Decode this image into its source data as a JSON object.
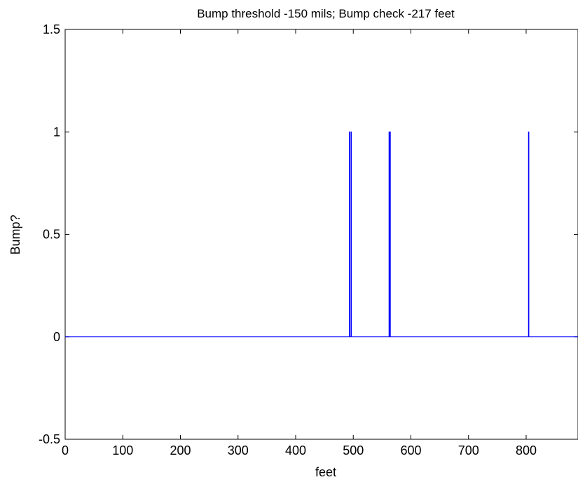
{
  "chart_data": {
    "type": "line",
    "title": "Bump threshold -150 mils; Bump check -217 feet",
    "xlabel": "feet",
    "ylabel": "Bump?",
    "xlim": [
      0,
      890
    ],
    "ylim": [
      -0.5,
      1.5
    ],
    "x_ticks": [
      0,
      100,
      200,
      300,
      400,
      500,
      600,
      700,
      800
    ],
    "x_tick_labels": [
      "0",
      "100",
      "200",
      "300",
      "400",
      "500",
      "600",
      "700",
      "800"
    ],
    "y_ticks": [
      -0.5,
      0,
      0.5,
      1,
      1.5
    ],
    "y_tick_labels": [
      "-0.5",
      "0",
      "0.5",
      "1",
      "1.5"
    ],
    "grid": false,
    "series_color": "#0000ff",
    "series": [
      {
        "x": [
          0,
          493,
          493,
          493.8,
          493.8,
          496,
          496,
          496.8,
          496.8,
          562,
          562,
          562.8,
          562.8,
          563.6,
          563.6,
          564.4,
          564.4,
          804,
          804,
          804.8,
          804.8,
          890
        ],
        "values": [
          0,
          0,
          1,
          1,
          0,
          0,
          1,
          1,
          0,
          0,
          1,
          1,
          0,
          0,
          1,
          1,
          0,
          0,
          1,
          1,
          0,
          0
        ]
      }
    ]
  }
}
